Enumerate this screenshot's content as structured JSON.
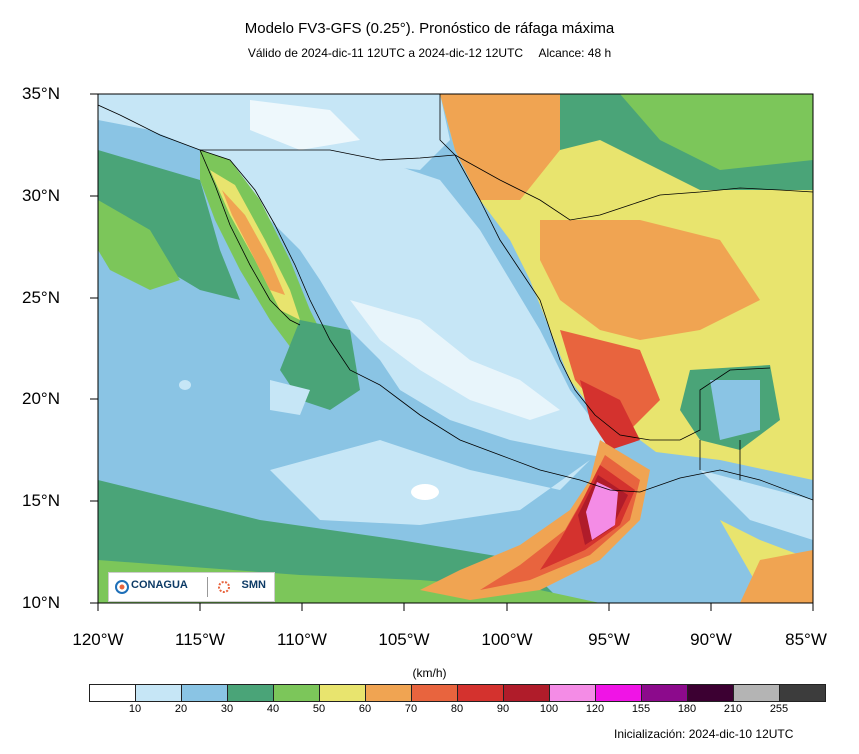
{
  "title": "Modelo FV3-GFS (0.25°). Pronóstico de ráfaga máxima",
  "subtitle": {
    "validity": "Válido de 2024-dic-11 12UTC a 2024-dic-12 12UTC",
    "range": "Alcance: 48 h"
  },
  "map": {
    "lat_labels": [
      "35°N",
      "30°N",
      "25°N",
      "20°N",
      "15°N",
      "10°N"
    ],
    "lon_labels": [
      "120°W",
      "115°W",
      "110°W",
      "105°W",
      "100°W",
      "95°W",
      "90°W",
      "85°W"
    ],
    "extent": {
      "lon": [
        -120,
        -85
      ],
      "lat": [
        10,
        35
      ]
    }
  },
  "legend": {
    "unit": "(km/h)",
    "ticks": [
      "10",
      "20",
      "30",
      "40",
      "50",
      "60",
      "70",
      "80",
      "90",
      "100",
      "120",
      "155",
      "180",
      "210",
      "255"
    ],
    "colors": [
      "#ffffff",
      "#c6e6f6",
      "#8ac4e4",
      "#4aa478",
      "#7cc65a",
      "#e8e46e",
      "#f0a452",
      "#e8643e",
      "#d4322e",
      "#b01c2a",
      "#f48ce6",
      "#f014e6",
      "#8c0a8c",
      "#3c0032",
      "#b4b4b4",
      "#3c3c3c"
    ]
  },
  "logos": {
    "left": "CONAGUA",
    "right": "SMN"
  },
  "initialization": "Inicialización: 2024-dic-10 12UTC"
}
